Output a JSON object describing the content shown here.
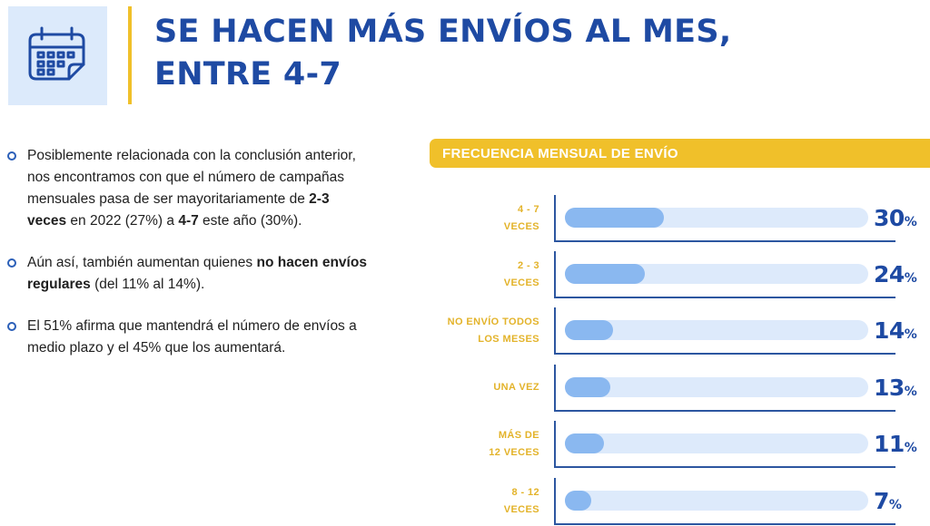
{
  "title": {
    "line1": "SE HACEN MÁS ENVÍOS AL MES,",
    "line2": "ENTRE 4-7"
  },
  "icon": "calendar-icon",
  "bullets": [
    {
      "parts": [
        {
          "text": "Posiblemente relacionada con la conclusión anterior, nos encontramos con que el número de campañas mensuales pasa de ser mayoritariamente de ",
          "bold": false
        },
        {
          "text": "2-3 veces",
          "bold": true
        },
        {
          "text": " en 2022 (27%) a ",
          "bold": false
        },
        {
          "text": "4-7",
          "bold": true
        },
        {
          "text": " este año (30%).",
          "bold": false
        }
      ]
    },
    {
      "parts": [
        {
          "text": "Aún así, también aumentan quienes ",
          "bold": false
        },
        {
          "text": "no hacen envíos regulares",
          "bold": true
        },
        {
          "text": " (del 11% al 14%).",
          "bold": false
        }
      ]
    },
    {
      "parts": [
        {
          "text": "El 51% afirma que mantendrá el número de envíos a medio plazo y el 45% que los aumentará.",
          "bold": false
        }
      ]
    }
  ],
  "colors": {
    "accent_yellow": "#f0c02a",
    "title_blue": "#1e4aa3",
    "bar_fill": "#8ab8f0",
    "bar_track": "#ddeafb"
  },
  "chart_data": {
    "type": "bar",
    "orientation": "horizontal",
    "title": "FRECUENCIA MENSUAL DE ENVÍO",
    "unit": "%",
    "xlim": [
      0,
      100
    ],
    "categories": [
      [
        "4 - 7",
        "VECES"
      ],
      [
        "2 - 3",
        "VECES"
      ],
      [
        "NO ENVÍO TODOS",
        "LOS MESES"
      ],
      [
        "UNA VEZ"
      ],
      [
        "MÁS DE",
        "12 VECES"
      ],
      [
        "8 - 12",
        "VECES"
      ]
    ],
    "values": [
      30,
      24,
      14,
      13,
      11,
      7
    ]
  }
}
